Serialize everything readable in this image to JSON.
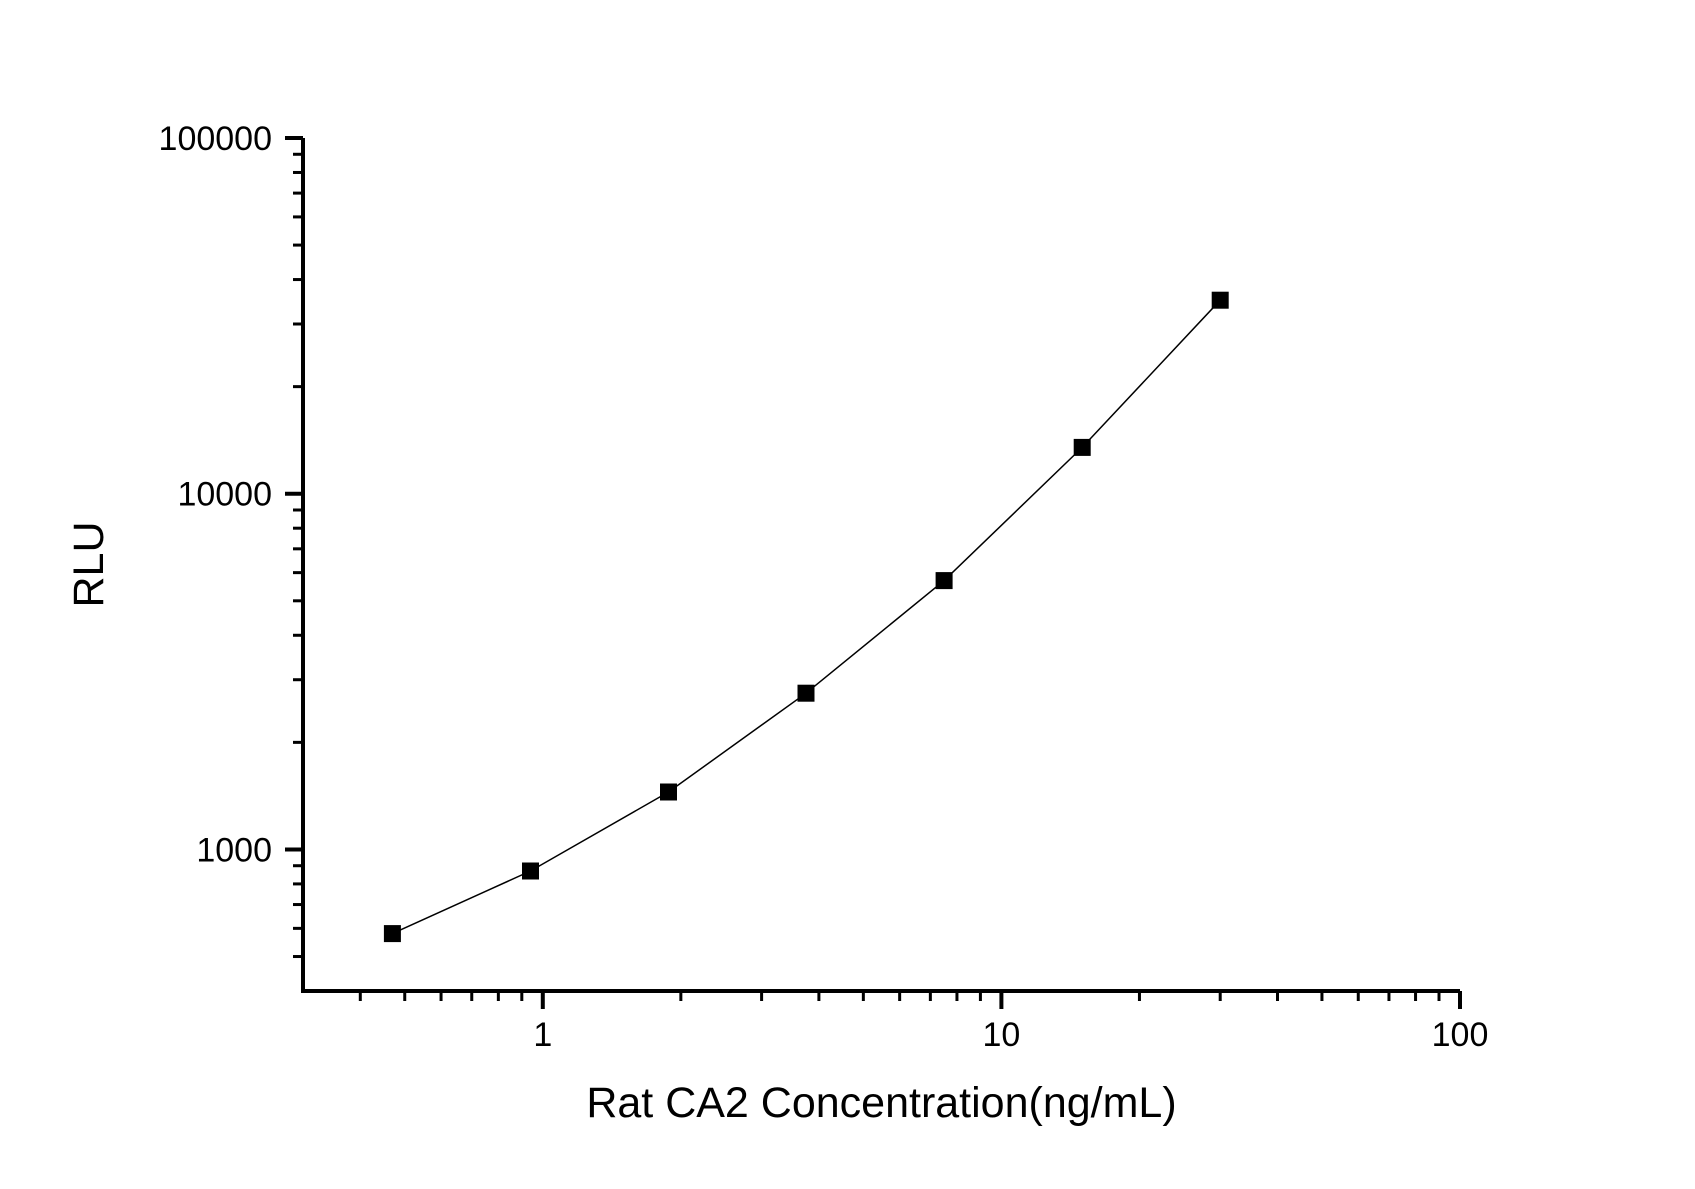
{
  "chart_data": {
    "type": "line",
    "title": "",
    "xlabel": "Rat CA2 Concentration(ng/mL)",
    "ylabel": "RLU",
    "x_scale": "log",
    "y_scale": "log",
    "x_range": [
      0.3,
      100
    ],
    "y_range": [
      400,
      100000
    ],
    "x_major_ticks": [
      1,
      10,
      100
    ],
    "x_major_tick_labels": [
      "1",
      "10",
      "100"
    ],
    "y_major_ticks": [
      1000,
      10000,
      100000
    ],
    "y_major_tick_labels": [
      "1000",
      "10000",
      "100000"
    ],
    "grid": false,
    "legend": "none",
    "series": [
      {
        "marker": "filled-square",
        "color": "#000000",
        "points": [
          {
            "x": 0.47,
            "y": 580
          },
          {
            "x": 0.94,
            "y": 870
          },
          {
            "x": 1.88,
            "y": 1450
          },
          {
            "x": 3.75,
            "y": 2750
          },
          {
            "x": 7.5,
            "y": 5700
          },
          {
            "x": 15,
            "y": 13500
          },
          {
            "x": 30,
            "y": 35000
          }
        ]
      }
    ]
  },
  "colors": {
    "background": "#ffffff",
    "axis": "#000000",
    "text": "#000000",
    "marker": "#000000",
    "line": "#000000"
  }
}
